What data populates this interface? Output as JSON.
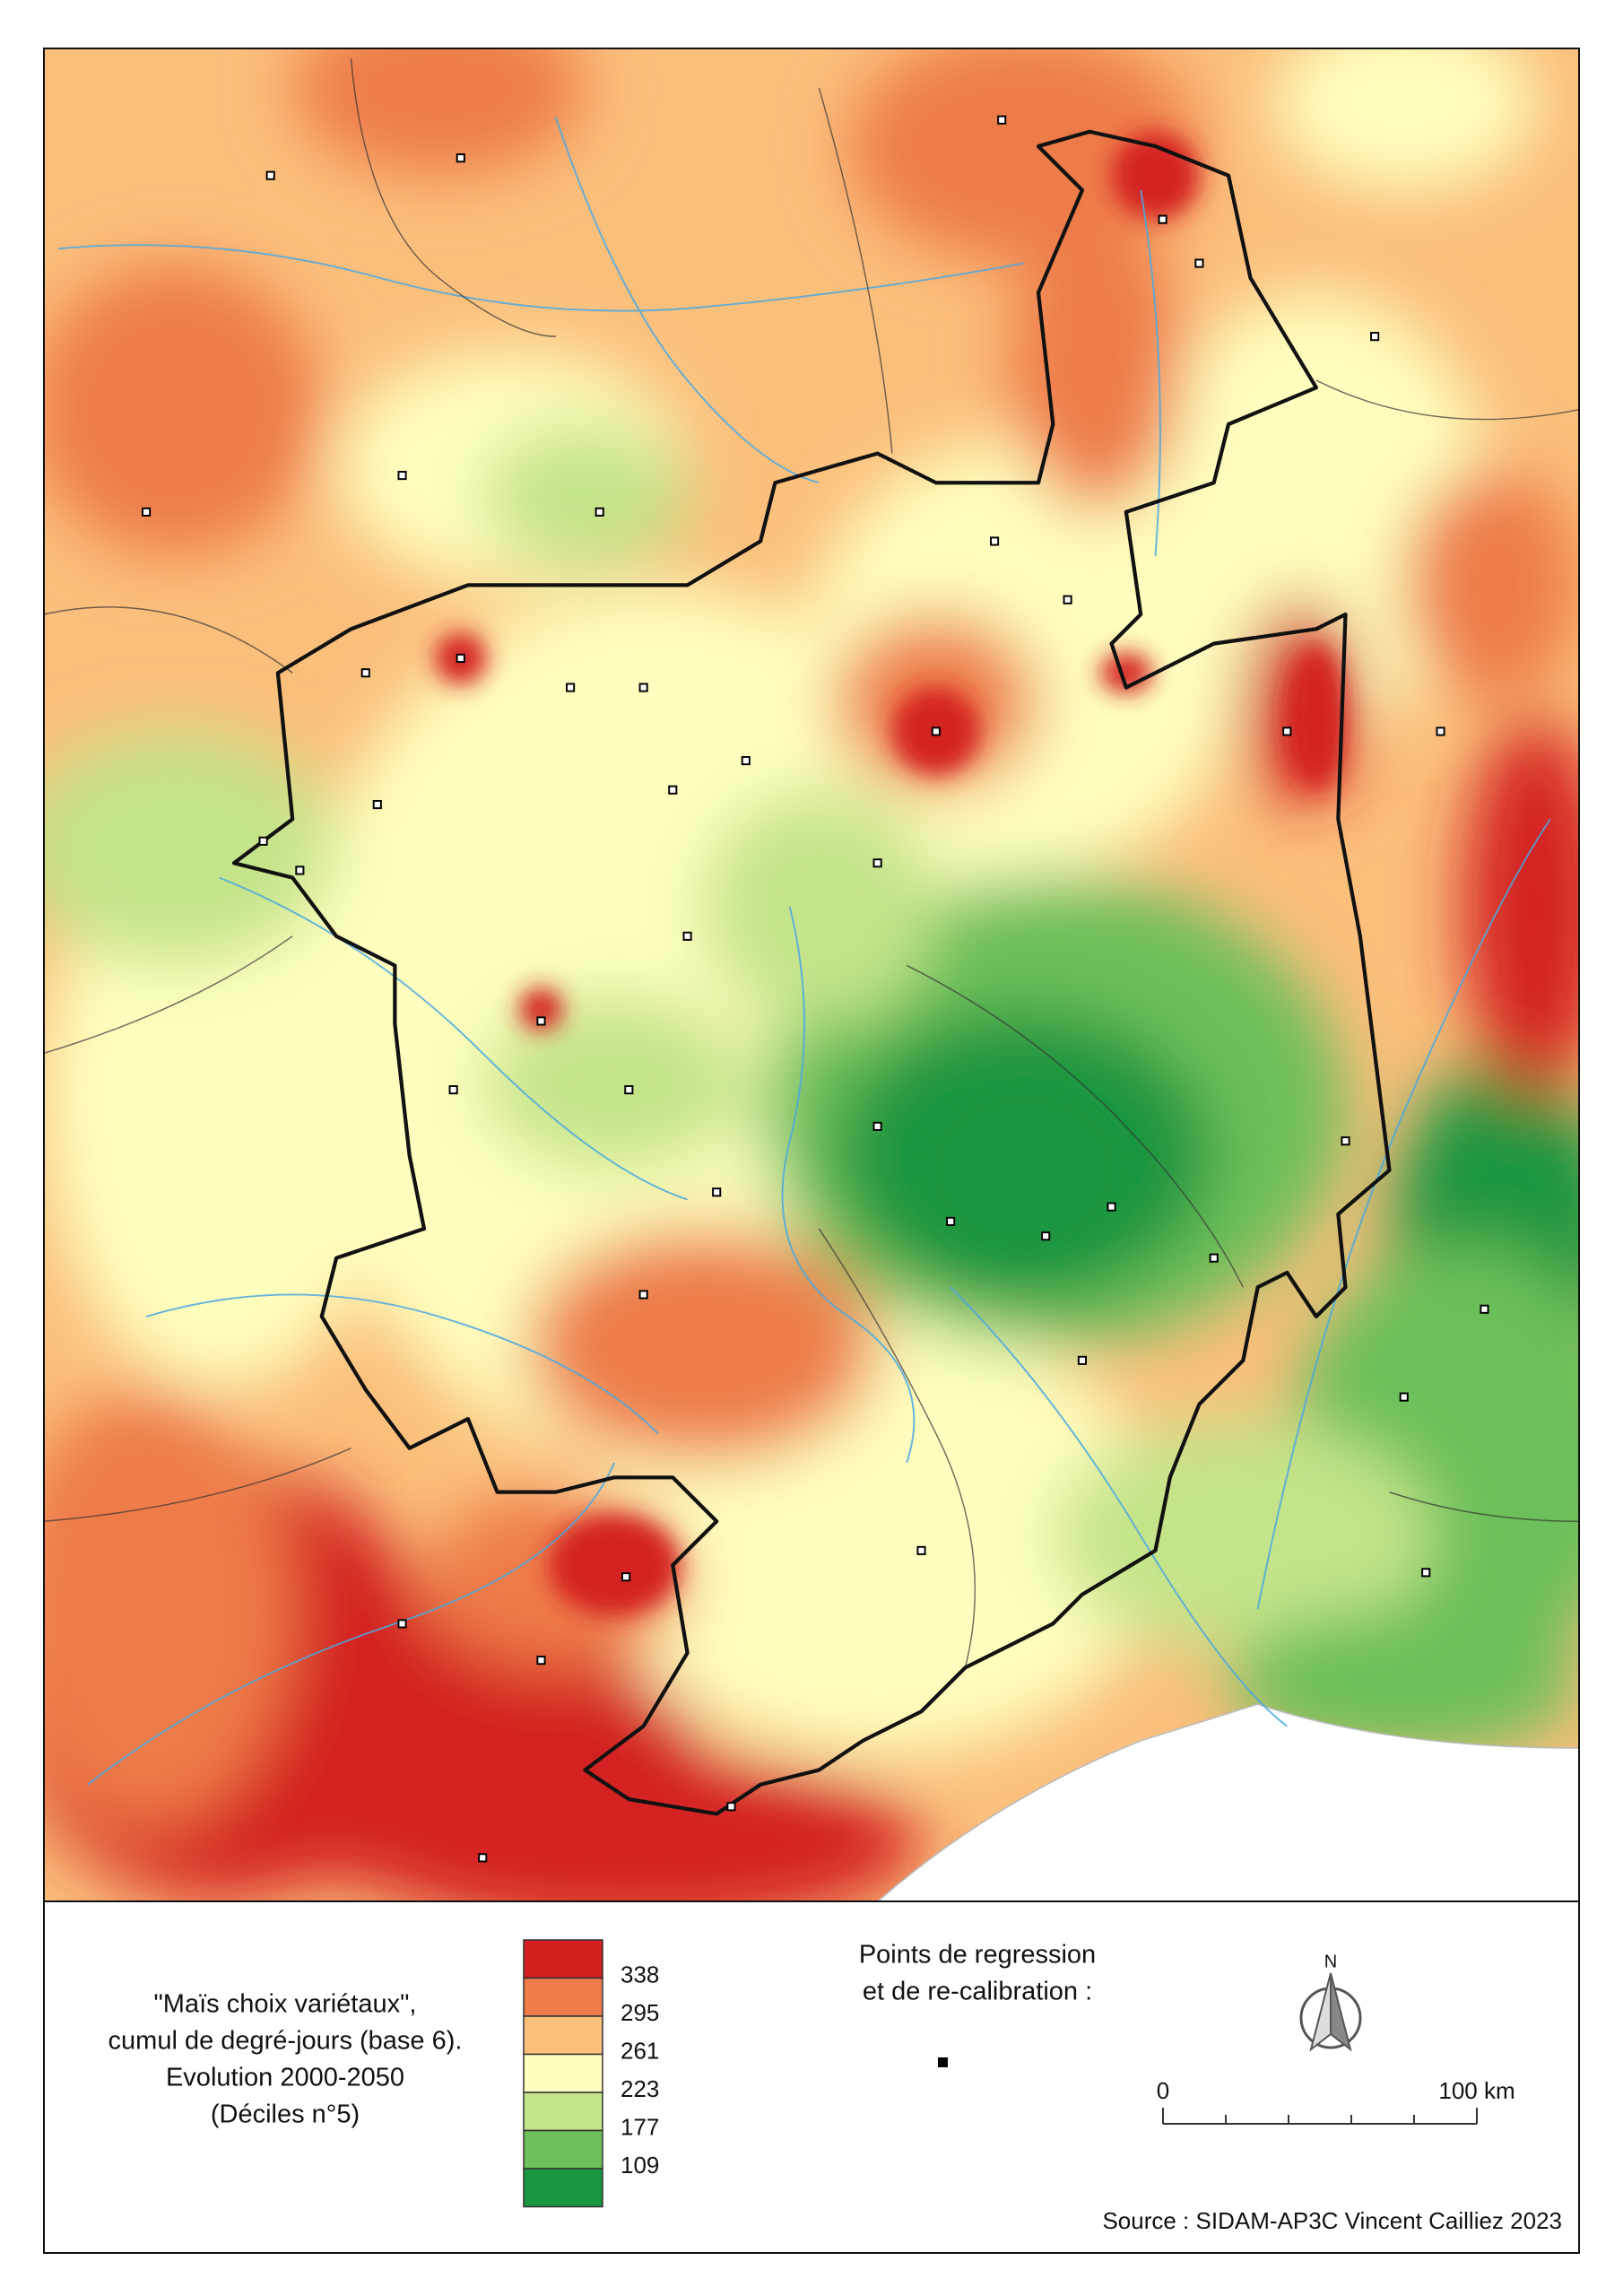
{
  "legend": {
    "title_lines": [
      "\"Maïs choix variétaux\",",
      "cumul de degré-jours (base 6).",
      "Evolution 2000-2050",
      "(Déciles n°5)"
    ],
    "colors": [
      "#d42020",
      "#ee7c4a",
      "#fbbf7c",
      "#fefebe",
      "#c4e48a",
      "#6cbf5a",
      "#1a9641"
    ],
    "breaks": [
      338,
      295,
      261,
      223,
      177,
      109
    ]
  },
  "points": {
    "label_lines": [
      "Points de regression",
      "et de re-calibration :"
    ]
  },
  "north": "N",
  "scale_bar": {
    "labels": [
      "0",
      "100 km"
    ]
  },
  "source": "Source : SIDAM-AP3C Vincent Cailliez 2023"
}
